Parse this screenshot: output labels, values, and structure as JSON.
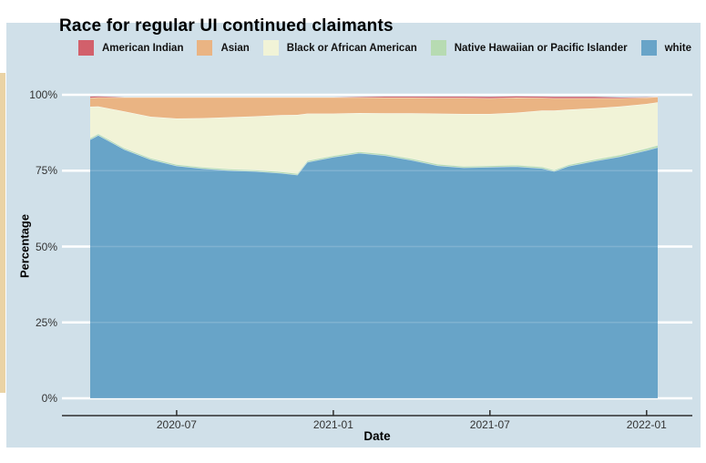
{
  "page": {
    "panel_color": "#d0e0e9",
    "left_strip_color": "#ead3a5"
  },
  "chart_data": {
    "type": "area",
    "stacked": true,
    "title": "Race for regular UI continued claimants",
    "xlabel": "Date",
    "ylabel": "Percentage",
    "x_range": [
      "2020-03-22",
      "2022-01-14"
    ],
    "ylim": [
      0,
      100
    ],
    "grid": "horizontal-white",
    "legend_position": "top",
    "y_ticks": [
      {
        "label": "0%",
        "value": 0
      },
      {
        "label": "25%",
        "value": 25
      },
      {
        "label": "50%",
        "value": 50
      },
      {
        "label": "75%",
        "value": 75
      },
      {
        "label": "100%",
        "value": 100
      }
    ],
    "x_ticks": [
      {
        "label": "2020-07",
        "date": "2020-07-01"
      },
      {
        "label": "2021-01",
        "date": "2021-01-01"
      },
      {
        "label": "2021-07",
        "date": "2021-07-01"
      },
      {
        "label": "2022-01",
        "date": "2022-01-01"
      }
    ],
    "dates": [
      "2020-03-22",
      "2020-04-01",
      "2020-05-01",
      "2020-06-01",
      "2020-07-01",
      "2020-08-01",
      "2020-09-01",
      "2020-10-01",
      "2020-11-01",
      "2020-11-20",
      "2020-12-01",
      "2020-12-15",
      "2021-01-01",
      "2021-02-01",
      "2021-03-01",
      "2021-04-01",
      "2021-05-01",
      "2021-06-01",
      "2021-07-01",
      "2021-08-01",
      "2021-09-01",
      "2021-09-15",
      "2021-10-01",
      "2021-11-01",
      "2021-12-01",
      "2022-01-01",
      "2022-01-14"
    ],
    "series": [
      {
        "name": "American Indian",
        "color": "#d2606b",
        "values": [
          0.4,
          0.3,
          0.0,
          0.0,
          0.0,
          0.0,
          0.0,
          0.0,
          0.0,
          0.0,
          0.0,
          0.0,
          0.0,
          0.1,
          0.3,
          0.3,
          0.4,
          0.4,
          0.4,
          0.4,
          0.4,
          0.4,
          0.4,
          0.4,
          0.2,
          0.1,
          0.0
        ]
      },
      {
        "name": "Asian",
        "color": "#eab483",
        "values": [
          2.9,
          3.0,
          4.7,
          6.4,
          7.0,
          6.9,
          6.6,
          6.3,
          5.9,
          5.8,
          5.4,
          5.4,
          5.4,
          5.2,
          5.2,
          5.2,
          5.2,
          5.3,
          5.2,
          5.0,
          4.2,
          4.1,
          3.8,
          3.3,
          2.7,
          2.1,
          1.8
        ]
      },
      {
        "name": "Black or African American",
        "color": "#f1f3d7",
        "values": [
          10.3,
          9.0,
          12.0,
          13.6,
          15.1,
          16.1,
          17.0,
          17.6,
          18.6,
          19.3,
          15.5,
          14.7,
          13.8,
          12.7,
          13.4,
          14.9,
          16.6,
          17.2,
          17.0,
          17.2,
          18.5,
          19.5,
          18.1,
          16.9,
          15.9,
          14.6,
          14.1
        ]
      },
      {
        "name": "Native Hawaiian or Pacific Islander",
        "color": "#b7dbb2",
        "values": [
          0.5,
          0.5,
          0.5,
          0.5,
          0.5,
          0.5,
          0.5,
          0.5,
          0.5,
          0.5,
          0.5,
          0.5,
          0.5,
          0.5,
          0.5,
          0.5,
          0.5,
          0.5,
          0.5,
          0.5,
          0.5,
          0.5,
          0.5,
          0.5,
          0.6,
          0.7,
          0.7
        ]
      },
      {
        "name": "white",
        "color": "#68a4c8",
        "values": [
          85.3,
          86.7,
          82.0,
          78.7,
          76.6,
          75.7,
          75.1,
          74.8,
          74.2,
          73.6,
          77.8,
          78.6,
          79.5,
          80.8,
          80.0,
          78.5,
          76.7,
          76.0,
          76.2,
          76.4,
          75.8,
          74.8,
          76.5,
          78.2,
          79.7,
          81.7,
          82.7
        ]
      }
    ]
  }
}
